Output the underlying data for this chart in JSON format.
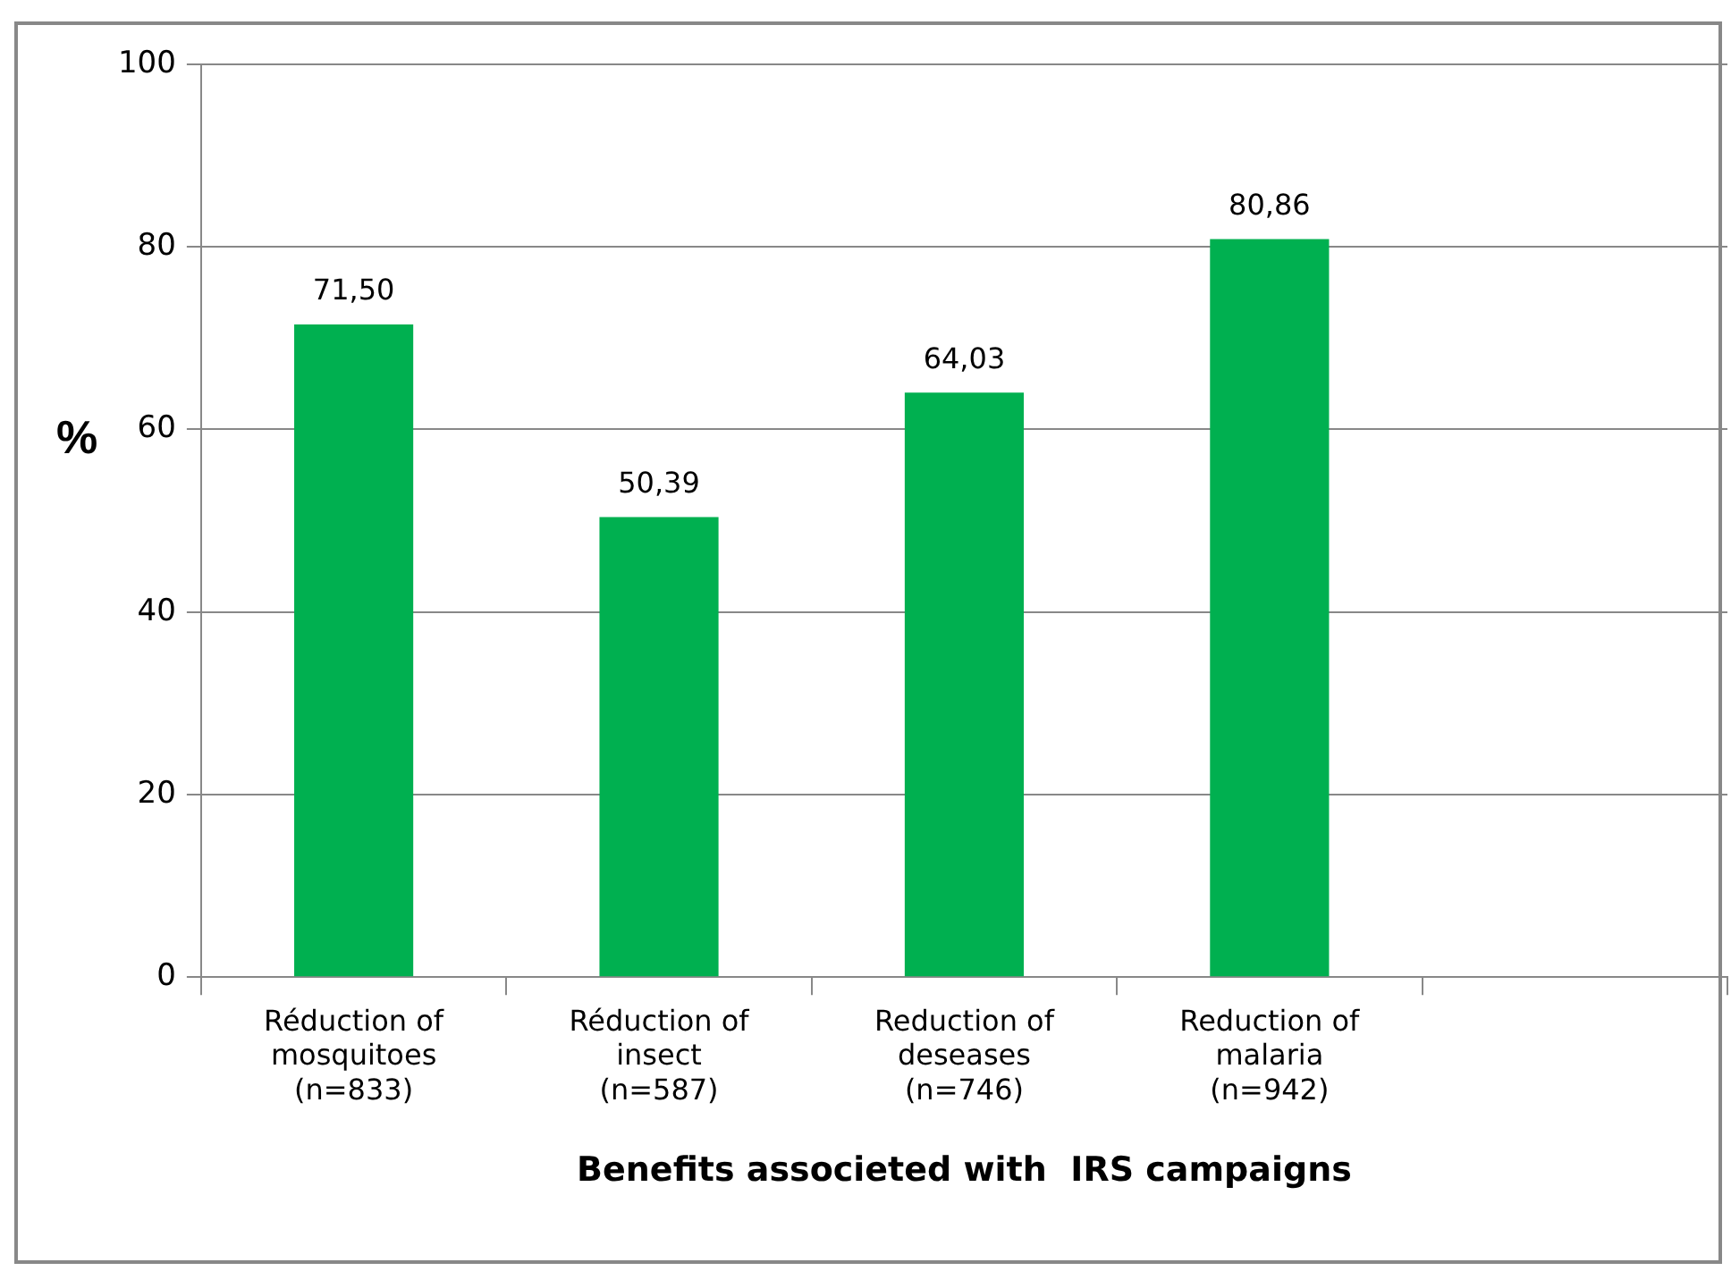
{
  "chart_data": {
    "type": "bar",
    "categories": [
      "Réduction of\nmosquitoes\n(n=833)",
      "Réduction of\ninsect\n(n=587)",
      "Reduction of\ndeseases\n(n=746)",
      "Reduction of\nmalaria\n(n=942)",
      null
    ],
    "values": [
      71.5,
      50.39,
      64.03,
      80.86,
      null
    ],
    "value_labels": [
      "71,50",
      "50,39",
      "64,03",
      "80,86",
      null
    ],
    "color": "#00b050",
    "ylim": [
      0,
      100
    ],
    "yticks": [
      0,
      20,
      40,
      60,
      80,
      100
    ],
    "ylabel": "%",
    "xlabel": "Benefits associeted with  IRS campaigns",
    "grid": "y",
    "legend": false
  }
}
